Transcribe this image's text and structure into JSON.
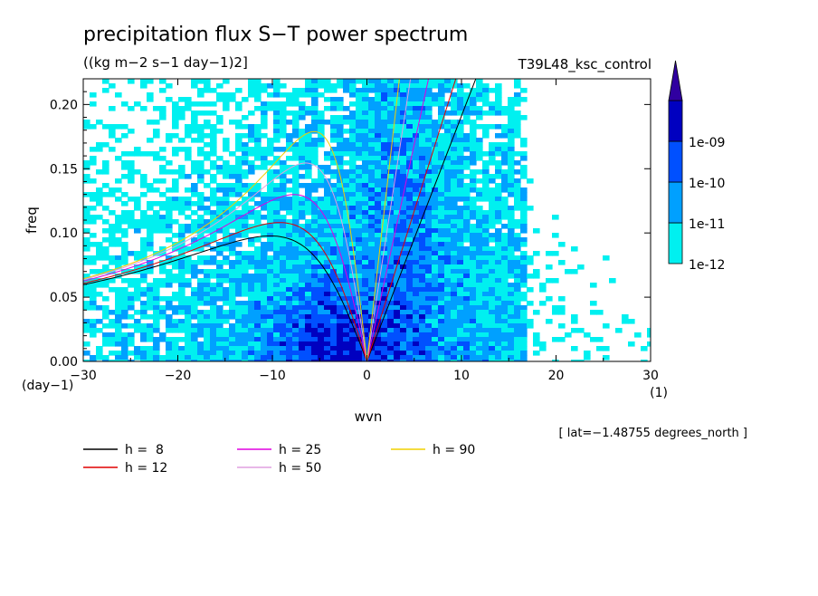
{
  "chart_data": {
    "type": "heatmap",
    "title": "precipitation flux S−T power spectrum",
    "units": "((kg m−2 s−1 day−1)2]",
    "run_label": "T39L48_ksc_control",
    "xlabel": "wvn",
    "ylabel": "freq",
    "x_units": "(1)",
    "y_units": "(day−1)",
    "xlim": [
      -30,
      30
    ],
    "ylim": [
      0,
      0.22
    ],
    "x_ticks": [
      -30,
      -20,
      -10,
      0,
      10,
      20,
      30
    ],
    "x_tick_labels": [
      "−30",
      "−20",
      "−10",
      "0",
      "10",
      "20",
      "30"
    ],
    "y_ticks": [
      0,
      0.05,
      0.1,
      0.15,
      0.2
    ],
    "y_tick_labels": [
      "0.00",
      "0.05",
      "0.10",
      "0.15",
      "0.20"
    ],
    "colorbar": {
      "labels": [
        "1e-12",
        "1e-11",
        "1e-10",
        "1e-09"
      ],
      "colors": [
        "#00f0f0",
        "#00a0ff",
        "#0050ff",
        "#0000c0",
        "#3000a0"
      ]
    },
    "field_colors": {
      "band1": "#00f0f0",
      "band2": "#00a0ff",
      "band3": "#0050ff",
      "band4": "#0000c0"
    },
    "annotation": "[ lat=−1.48755 degrees_north ]",
    "series": [
      {
        "name": "h =  8",
        "color": "#000000"
      },
      {
        "name": "h = 12",
        "color": "#e00000"
      },
      {
        "name": "h = 25",
        "color": "#e000e0"
      },
      {
        "name": "h = 50",
        "color": "#e0a0e0"
      },
      {
        "name": "h = 90",
        "color": "#f0d000"
      }
    ]
  }
}
